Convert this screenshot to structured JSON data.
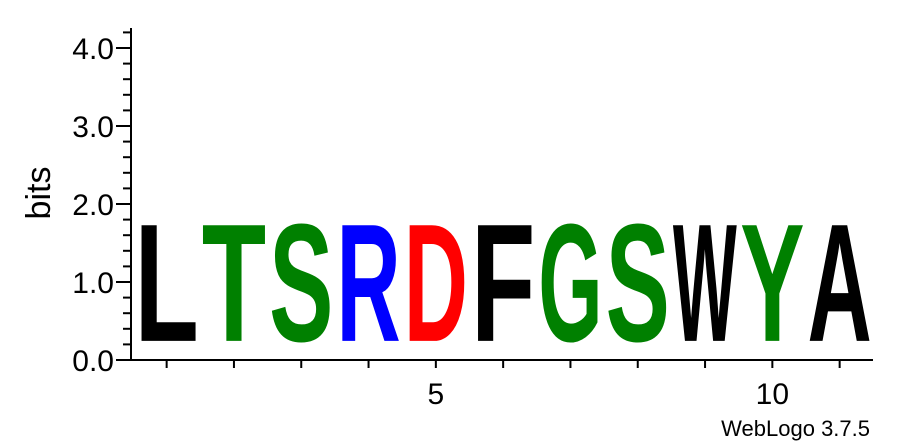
{
  "chart_data": {
    "type": "sequence-logo",
    "ylabel": "bits",
    "ylim": [
      0,
      4.3
    ],
    "y_ticks": [
      {
        "value": 0,
        "label": "0.0"
      },
      {
        "value": 1,
        "label": "1.0"
      },
      {
        "value": 2,
        "label": "2.0"
      },
      {
        "value": 3,
        "label": "3.0"
      },
      {
        "value": 4,
        "label": "4.0"
      }
    ],
    "y_minor_step": 0.2,
    "x_ticks": [
      {
        "position": 5,
        "label": "5"
      },
      {
        "position": 10,
        "label": "10"
      }
    ],
    "positions": [
      {
        "position": 1,
        "letter": "L",
        "bits": 1.75,
        "color": "#000000"
      },
      {
        "position": 2,
        "letter": "T",
        "bits": 1.75,
        "color": "#008000"
      },
      {
        "position": 3,
        "letter": "S",
        "bits": 1.75,
        "color": "#008000"
      },
      {
        "position": 4,
        "letter": "R",
        "bits": 1.75,
        "color": "#0000ff"
      },
      {
        "position": 5,
        "letter": "D",
        "bits": 1.75,
        "color": "#ff0000"
      },
      {
        "position": 6,
        "letter": "F",
        "bits": 1.75,
        "color": "#000000"
      },
      {
        "position": 7,
        "letter": "G",
        "bits": 1.75,
        "color": "#008000"
      },
      {
        "position": 8,
        "letter": "S",
        "bits": 1.75,
        "color": "#008000"
      },
      {
        "position": 9,
        "letter": "W",
        "bits": 1.75,
        "color": "#000000"
      },
      {
        "position": 10,
        "letter": "Y",
        "bits": 1.75,
        "color": "#008000"
      },
      {
        "position": 11,
        "letter": "A",
        "bits": 1.75,
        "color": "#000000"
      }
    ]
  },
  "credit": "WebLogo 3.7.5"
}
